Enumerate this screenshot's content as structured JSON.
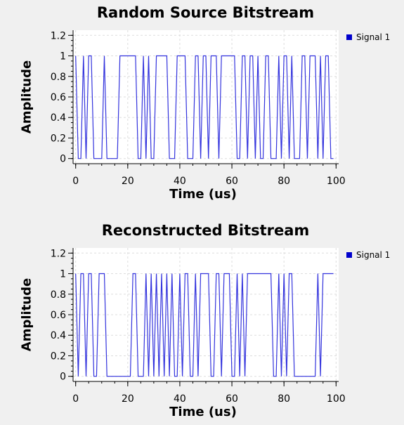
{
  "chart_data": [
    {
      "type": "line",
      "title": "Random Source Bitstream",
      "xlabel": "Time (us)",
      "ylabel": "Amplitude",
      "xlim": [
        -1,
        101
      ],
      "ylim": [
        -0.05,
        1.25
      ],
      "xticks": [
        "0",
        "20",
        "40",
        "60",
        "80",
        "100"
      ],
      "yticks": [
        "0",
        "0.2",
        "0.4",
        "0.6",
        "0.8",
        "1",
        "1.2"
      ],
      "grid": true,
      "legend_position": "top-right",
      "series": [
        {
          "name": "Signal 1",
          "color": "#3333dd",
          "x": [
            0,
            1,
            2,
            3,
            4,
            5,
            6,
            7,
            8,
            9,
            10,
            11,
            12,
            13,
            14,
            15,
            16,
            17,
            18,
            19,
            20,
            21,
            22,
            23,
            24,
            25,
            26,
            27,
            28,
            29,
            30,
            31,
            32,
            33,
            34,
            35,
            36,
            37,
            38,
            39,
            40,
            41,
            42,
            43,
            44,
            45,
            46,
            47,
            48,
            49,
            50,
            51,
            52,
            53,
            54,
            55,
            56,
            57,
            58,
            59,
            60,
            61,
            62,
            63,
            64,
            65,
            66,
            67,
            68,
            69,
            70,
            71,
            72,
            73,
            74,
            75,
            76,
            77,
            78,
            79,
            80,
            81,
            82,
            83,
            84,
            85,
            86,
            87,
            88,
            89,
            90,
            91,
            92,
            93,
            94,
            95,
            96,
            97,
            98,
            99
          ],
          "values": [
            1,
            0,
            0,
            1,
            0,
            1,
            1,
            0,
            0,
            0,
            0,
            1,
            0,
            0,
            0,
            0,
            0,
            1,
            1,
            1,
            1,
            1,
            1,
            1,
            0,
            0,
            1,
            0,
            1,
            0,
            0,
            1,
            1,
            1,
            1,
            1,
            0,
            0,
            0,
            1,
            1,
            1,
            1,
            0,
            0,
            0,
            1,
            1,
            0,
            1,
            1,
            0,
            1,
            1,
            1,
            0,
            1,
            1,
            1,
            1,
            1,
            1,
            0,
            0,
            1,
            1,
            0,
            1,
            1,
            0,
            1,
            0,
            0,
            1,
            1,
            0,
            0,
            0,
            1,
            0,
            1,
            1,
            0,
            1,
            0,
            0,
            0,
            1,
            1,
            0,
            1,
            1,
            1,
            0,
            1,
            0,
            1,
            1,
            0,
            0
          ]
        }
      ]
    },
    {
      "type": "line",
      "title": "Reconstructed Bitstream",
      "xlabel": "Time (us)",
      "ylabel": "Amplitude",
      "xlim": [
        -1,
        101
      ],
      "ylim": [
        -0.05,
        1.25
      ],
      "xticks": [
        "0",
        "20",
        "40",
        "60",
        "80",
        "100"
      ],
      "yticks": [
        "0",
        "0.2",
        "0.4",
        "0.6",
        "0.8",
        "1",
        "1.2"
      ],
      "grid": true,
      "legend_position": "top-right",
      "series": [
        {
          "name": "Signal 1",
          "color": "#3333dd",
          "x": [
            0,
            1,
            2,
            3,
            4,
            5,
            6,
            7,
            8,
            9,
            10,
            11,
            12,
            13,
            14,
            15,
            16,
            17,
            18,
            19,
            20,
            21,
            22,
            23,
            24,
            25,
            26,
            27,
            28,
            29,
            30,
            31,
            32,
            33,
            34,
            35,
            36,
            37,
            38,
            39,
            40,
            41,
            42,
            43,
            44,
            45,
            46,
            47,
            48,
            49,
            50,
            51,
            52,
            53,
            54,
            55,
            56,
            57,
            58,
            59,
            60,
            61,
            62,
            63,
            64,
            65,
            66,
            67,
            68,
            69,
            70,
            71,
            72,
            73,
            74,
            75,
            76,
            77,
            78,
            79,
            80,
            81,
            82,
            83,
            84,
            85,
            86,
            87,
            88,
            89,
            90,
            91,
            92,
            93,
            94,
            95,
            96,
            97,
            98,
            99
          ],
          "values": [
            1,
            0,
            1,
            1,
            0,
            1,
            1,
            0,
            0,
            1,
            1,
            1,
            0,
            0,
            0,
            0,
            0,
            0,
            0,
            0,
            0,
            0,
            1,
            1,
            0,
            0,
            0,
            1,
            0,
            1,
            0,
            1,
            0,
            1,
            0,
            1,
            0,
            1,
            0,
            0,
            1,
            0,
            1,
            1,
            0,
            0,
            1,
            0,
            1,
            1,
            1,
            1,
            0,
            0,
            1,
            1,
            0,
            1,
            1,
            1,
            0,
            0,
            1,
            0,
            1,
            0,
            1,
            1,
            1,
            1,
            1,
            1,
            1,
            1,
            1,
            1,
            0,
            0,
            1,
            0,
            1,
            0,
            1,
            1,
            0,
            0,
            0,
            0,
            0,
            0,
            0,
            0,
            0,
            1,
            0,
            1,
            1,
            1,
            1,
            1
          ]
        }
      ]
    }
  ]
}
